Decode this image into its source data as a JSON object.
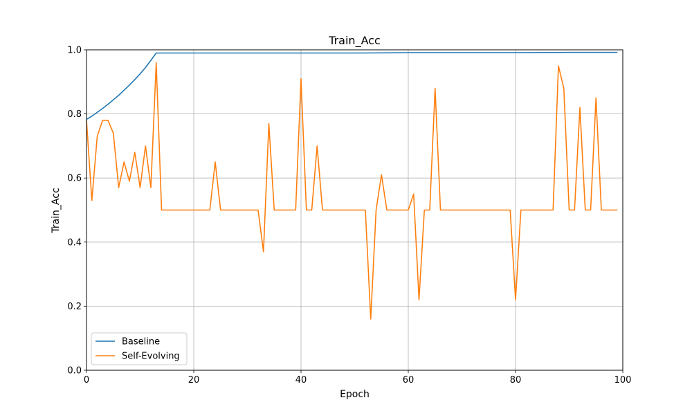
{
  "chart_data": {
    "type": "line",
    "title": "Train_Acc",
    "xlabel": "Epoch",
    "ylabel": "Train_Acc",
    "xlim": [
      0,
      100
    ],
    "ylim": [
      0,
      1.0
    ],
    "xticks": [
      0,
      20,
      40,
      60,
      80,
      100
    ],
    "yticks": [
      0.0,
      0.2,
      0.4,
      0.6,
      0.8,
      1.0
    ],
    "xtick_labels": [
      "0",
      "20",
      "40",
      "60",
      "80",
      "100"
    ],
    "ytick_labels": [
      "0.0",
      "0.2",
      "0.4",
      "0.6",
      "0.8",
      "1.0"
    ],
    "grid": true,
    "legend_position": "lower-left",
    "series": [
      {
        "name": "Baseline",
        "color": "#1f77b4",
        "x": [
          0,
          1,
          2,
          3,
          4,
          5,
          6,
          7,
          8,
          9,
          10,
          11,
          12,
          13,
          20,
          30,
          40,
          50,
          60,
          70,
          80,
          90,
          99
        ],
        "y": [
          0.783,
          0.793,
          0.805,
          0.817,
          0.83,
          0.844,
          0.858,
          0.874,
          0.89,
          0.907,
          0.925,
          0.945,
          0.967,
          0.99,
          0.99,
          0.99,
          0.99,
          0.99,
          0.991,
          0.991,
          0.991,
          0.992,
          0.992
        ]
      },
      {
        "name": "Self-Evolving",
        "color": "#ff7f0e",
        "x": [
          0,
          1,
          2,
          3,
          4,
          5,
          6,
          7,
          8,
          9,
          10,
          11,
          12,
          13,
          14,
          15,
          16,
          17,
          18,
          19,
          20,
          21,
          22,
          23,
          24,
          25,
          26,
          27,
          28,
          29,
          30,
          31,
          32,
          33,
          34,
          35,
          36,
          37,
          38,
          39,
          40,
          41,
          42,
          43,
          44,
          45,
          46,
          47,
          48,
          49,
          50,
          51,
          52,
          53,
          54,
          55,
          56,
          57,
          58,
          59,
          60,
          61,
          62,
          63,
          64,
          65,
          66,
          67,
          68,
          69,
          70,
          71,
          72,
          73,
          74,
          75,
          76,
          77,
          78,
          79,
          80,
          81,
          82,
          83,
          84,
          85,
          86,
          87,
          88,
          89,
          90,
          91,
          92,
          93,
          94,
          95,
          96,
          97,
          98,
          99
        ],
        "y": [
          0.78,
          0.53,
          0.73,
          0.78,
          0.78,
          0.74,
          0.57,
          0.65,
          0.59,
          0.68,
          0.57,
          0.7,
          0.57,
          0.96,
          0.5,
          0.5,
          0.5,
          0.5,
          0.5,
          0.5,
          0.5,
          0.5,
          0.5,
          0.5,
          0.65,
          0.5,
          0.5,
          0.5,
          0.5,
          0.5,
          0.5,
          0.5,
          0.5,
          0.37,
          0.77,
          0.5,
          0.5,
          0.5,
          0.5,
          0.5,
          0.91,
          0.5,
          0.5,
          0.7,
          0.5,
          0.5,
          0.5,
          0.5,
          0.5,
          0.5,
          0.5,
          0.5,
          0.5,
          0.16,
          0.5,
          0.61,
          0.5,
          0.5,
          0.5,
          0.5,
          0.5,
          0.55,
          0.22,
          0.5,
          0.5,
          0.88,
          0.5,
          0.5,
          0.5,
          0.5,
          0.5,
          0.5,
          0.5,
          0.5,
          0.5,
          0.5,
          0.5,
          0.5,
          0.5,
          0.5,
          0.22,
          0.5,
          0.5,
          0.5,
          0.5,
          0.5,
          0.5,
          0.5,
          0.95,
          0.88,
          0.5,
          0.5,
          0.82,
          0.5,
          0.5,
          0.85,
          0.5,
          0.5,
          0.5,
          0.5
        ]
      }
    ]
  }
}
